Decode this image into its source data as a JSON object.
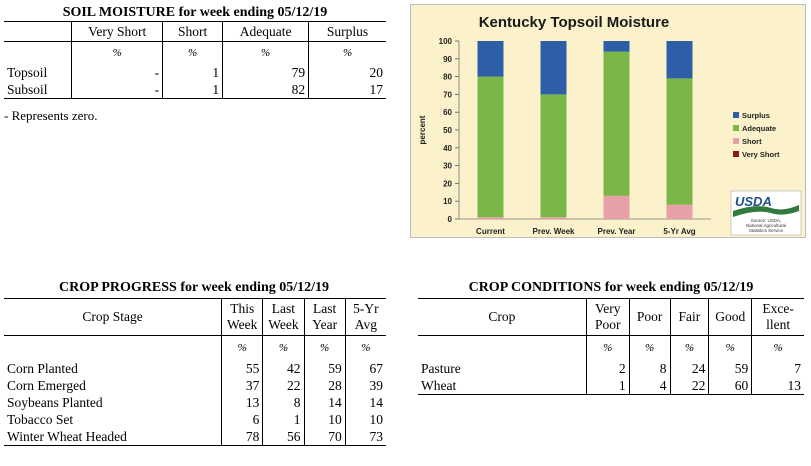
{
  "soil_moisture": {
    "title": "SOIL MOISTURE for week ending 05/12/19",
    "columns": [
      "Very Short",
      "Short",
      "Adequate",
      "Surplus"
    ],
    "unit": "%",
    "rows": [
      {
        "label": "Topsoil",
        "values": [
          "-",
          "1",
          "79",
          "20"
        ]
      },
      {
        "label": "Subsoil",
        "values": [
          "-",
          "1",
          "82",
          "17"
        ]
      }
    ],
    "note": "- Represents zero."
  },
  "chart_data": {
    "type": "bar",
    "stacked": true,
    "title": "Kentucky Topsoil Moisture",
    "ylabel": "percent",
    "xlabel": "",
    "ylim": [
      0,
      100
    ],
    "yticks": [
      0,
      10,
      20,
      30,
      40,
      50,
      60,
      70,
      80,
      90,
      100
    ],
    "categories": [
      "Current",
      "Prev. Week",
      "Prev. Year",
      "5-Yr Avg"
    ],
    "series": [
      {
        "name": "Very Short",
        "color": "#8b1a1a",
        "values": [
          0,
          0,
          0,
          0
        ]
      },
      {
        "name": "Short",
        "color": "#e8a0a8",
        "values": [
          1,
          1,
          13,
          8
        ]
      },
      {
        "name": "Adequate",
        "color": "#7ab648",
        "values": [
          79,
          69,
          81,
          71
        ]
      },
      {
        "name": "Surplus",
        "color": "#2e5ea8",
        "values": [
          20,
          30,
          6,
          21
        ]
      }
    ],
    "legend": {
      "placement": "right",
      "order": [
        "Surplus",
        "Adequate",
        "Short",
        "Very Short"
      ]
    },
    "grid": false,
    "background": "#fbf2cc",
    "logo": {
      "text": "USDA",
      "source_lines": [
        "Source: USDA,",
        "National Agricultural",
        "Statistics Service"
      ]
    }
  },
  "crop_progress": {
    "title": "CROP PROGRESS for week ending 05/12/19",
    "stage_header": "Crop Stage",
    "columns": [
      [
        "This",
        "Week"
      ],
      [
        "Last",
        "Week"
      ],
      [
        "Last",
        "Year"
      ],
      [
        "5-Yr",
        "Avg"
      ]
    ],
    "unit": "%",
    "rows": [
      {
        "label": "Corn Planted",
        "values": [
          "55",
          "42",
          "59",
          "67"
        ]
      },
      {
        "label": "Corn Emerged",
        "values": [
          "37",
          "22",
          "28",
          "39"
        ]
      },
      {
        "label": "Soybeans Planted",
        "values": [
          "13",
          "8",
          "14",
          "14"
        ]
      },
      {
        "label": "Tobacco Set",
        "values": [
          "6",
          "1",
          "10",
          "10"
        ]
      },
      {
        "label": "Winter Wheat Headed",
        "values": [
          "78",
          "56",
          "70",
          "73"
        ]
      }
    ]
  },
  "crop_conditions": {
    "title": "CROP CONDITIONS for week ending 05/12/19",
    "crop_header": "Crop",
    "columns": [
      [
        "Very",
        "Poor"
      ],
      [
        "Poor",
        ""
      ],
      [
        "Fair",
        ""
      ],
      [
        "Good",
        ""
      ],
      [
        "Exce-",
        "llent"
      ]
    ],
    "unit": "%",
    "rows": [
      {
        "label": "Pasture",
        "values": [
          "2",
          "8",
          "24",
          "59",
          "7"
        ]
      },
      {
        "label": "Wheat",
        "values": [
          "1",
          "4",
          "22",
          "60",
          "13"
        ]
      }
    ]
  }
}
